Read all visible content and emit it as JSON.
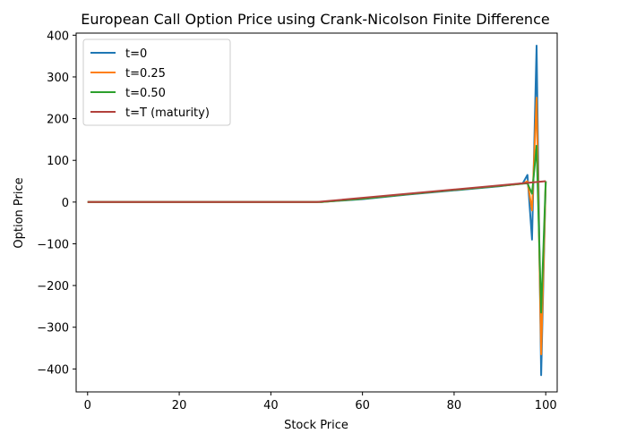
{
  "chart_data": {
    "type": "line",
    "title": "European Call Option Price using Crank-Nicolson Finite Difference",
    "xlabel": "Stock Price",
    "ylabel": "Option Price",
    "xlim": [
      -2.5,
      102.5
    ],
    "ylim": [
      -455,
      405
    ],
    "xticks": [
      0,
      20,
      40,
      60,
      80,
      100
    ],
    "xtick_labels": [
      "0",
      "20",
      "40",
      "60",
      "80",
      "100"
    ],
    "yticks": [
      400,
      300,
      200,
      100,
      0,
      -100,
      -200,
      -300,
      -400
    ],
    "ytick_labels": [
      "400",
      "300",
      "200",
      "100",
      "0",
      "−100",
      "−200",
      "−300",
      "−400"
    ],
    "grid": false,
    "legend_position": "top-left",
    "series": [
      {
        "name": "t=0",
        "color": "#1f77b4",
        "x": [
          0,
          10,
          20,
          30,
          40,
          50,
          51,
          60,
          70,
          80,
          90,
          95,
          96,
          97,
          98,
          99,
          100
        ],
        "y": [
          0,
          0,
          0,
          0,
          0,
          0,
          0,
          7,
          18,
          28,
          38,
          45,
          65,
          -90,
          375,
          -415,
          50
        ]
      },
      {
        "name": "t=0.25",
        "color": "#ff7f0e",
        "x": [
          0,
          10,
          20,
          30,
          40,
          50,
          51,
          60,
          70,
          80,
          90,
          95,
          96,
          97,
          98,
          99,
          100
        ],
        "y": [
          0,
          0,
          0,
          0,
          0,
          0,
          0,
          8,
          19,
          29,
          39,
          44,
          50,
          -20,
          250,
          -365,
          50
        ]
      },
      {
        "name": "t=0.50",
        "color": "#2ca02c",
        "x": [
          0,
          10,
          20,
          30,
          40,
          50,
          51,
          60,
          70,
          80,
          90,
          95,
          96,
          97,
          98,
          99,
          100
        ],
        "y": [
          0,
          0,
          0,
          0,
          0,
          0,
          0,
          8,
          19,
          29,
          39,
          44,
          45,
          20,
          135,
          -265,
          50
        ]
      },
      {
        "name": "t=T (maturity)",
        "color": "#b2413c",
        "x": [
          0,
          50,
          100
        ],
        "y": [
          0,
          0,
          50
        ]
      }
    ]
  }
}
